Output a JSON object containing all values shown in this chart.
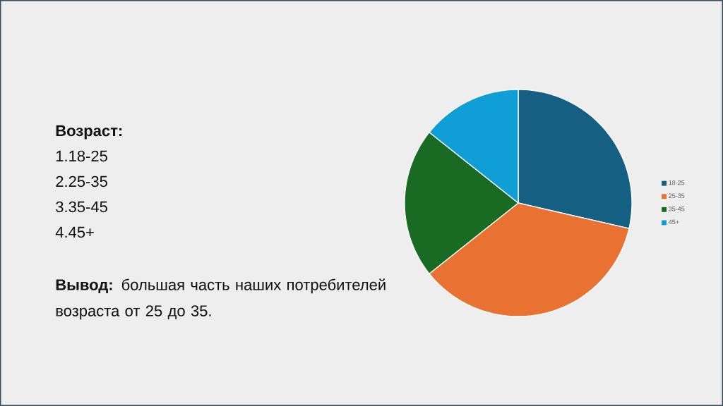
{
  "chart_data": {
    "type": "pie",
    "title": "Возраст:",
    "categories": [
      "18-25",
      "25-35",
      "35-45",
      "45+"
    ],
    "values": [
      28.6,
      35.7,
      21.4,
      14.3
    ],
    "colors": [
      "#156082",
      "#e97132",
      "#196b24",
      "#0f9ed5"
    ],
    "legend": "right",
    "annotations": [
      "1.18-25",
      "2.25-35",
      "3.35-45",
      "4.45+",
      "**Вывод:** большая часть наших потребителей возраста от 25 до 35."
    ]
  }
}
